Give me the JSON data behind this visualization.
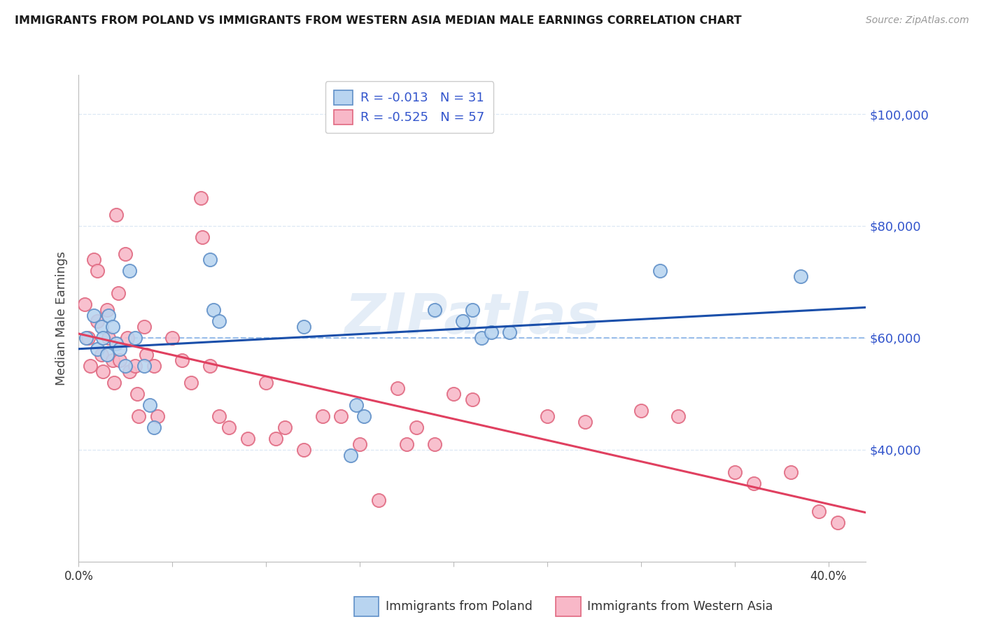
{
  "title": "IMMIGRANTS FROM POLAND VS IMMIGRANTS FROM WESTERN ASIA MEDIAN MALE EARNINGS CORRELATION CHART",
  "source": "Source: ZipAtlas.com",
  "ylabel": "Median Male Earnings",
  "legend_poland_R": "-0.013",
  "legend_poland_N": "31",
  "legend_western_R": "-0.525",
  "legend_western_N": "57",
  "ytick_values": [
    40000,
    60000,
    80000,
    100000
  ],
  "ytick_labels": [
    "$40,000",
    "$60,000",
    "$80,000",
    "$100,000"
  ],
  "ylim": [
    20000,
    107000
  ],
  "xlim": [
    0.0,
    0.42
  ],
  "xtick_positions": [
    0.0,
    0.05,
    0.1,
    0.15,
    0.2,
    0.25,
    0.3,
    0.35,
    0.4
  ],
  "xtick_labels": [
    "0.0%",
    "",
    "",
    "",
    "",
    "",
    "",
    "",
    "40.0%"
  ],
  "watermark": "ZIPatlas",
  "poland_face_color": "#b8d4f0",
  "poland_edge_color": "#6090c8",
  "western_face_color": "#f8b8c8",
  "western_edge_color": "#e06880",
  "trend_poland_color": "#1a4faa",
  "trend_western_color": "#e04060",
  "dashed_ref_color": "#90b8e8",
  "grid_color": "#dce8f4",
  "legend_text_color": "#3355cc",
  "ytick_color": "#3355cc",
  "poland_scatter_x": [
    0.004,
    0.008,
    0.01,
    0.012,
    0.013,
    0.015,
    0.016,
    0.018,
    0.02,
    0.022,
    0.025,
    0.027,
    0.03,
    0.035,
    0.038,
    0.04,
    0.07,
    0.072,
    0.075,
    0.12,
    0.145,
    0.148,
    0.152,
    0.19,
    0.205,
    0.21,
    0.215,
    0.22,
    0.23,
    0.31,
    0.385
  ],
  "poland_scatter_y": [
    60000,
    64000,
    58000,
    62000,
    60000,
    57000,
    64000,
    62000,
    59000,
    58000,
    55000,
    72000,
    60000,
    55000,
    48000,
    44000,
    74000,
    65000,
    63000,
    62000,
    39000,
    48000,
    46000,
    65000,
    63000,
    65000,
    60000,
    61000,
    61000,
    72000,
    71000
  ],
  "western_scatter_x": [
    0.003,
    0.005,
    0.006,
    0.008,
    0.01,
    0.01,
    0.012,
    0.013,
    0.015,
    0.016,
    0.018,
    0.019,
    0.02,
    0.021,
    0.022,
    0.025,
    0.026,
    0.027,
    0.03,
    0.031,
    0.032,
    0.035,
    0.036,
    0.04,
    0.042,
    0.05,
    0.055,
    0.06,
    0.065,
    0.066,
    0.07,
    0.075,
    0.08,
    0.09,
    0.1,
    0.105,
    0.11,
    0.12,
    0.13,
    0.14,
    0.15,
    0.16,
    0.17,
    0.175,
    0.18,
    0.19,
    0.2,
    0.21,
    0.25,
    0.27,
    0.3,
    0.32,
    0.35,
    0.36,
    0.38,
    0.395,
    0.405
  ],
  "western_scatter_y": [
    66000,
    60000,
    55000,
    74000,
    72000,
    63000,
    57000,
    54000,
    65000,
    60000,
    56000,
    52000,
    82000,
    68000,
    56000,
    75000,
    60000,
    54000,
    55000,
    50000,
    46000,
    62000,
    57000,
    55000,
    46000,
    60000,
    56000,
    52000,
    85000,
    78000,
    55000,
    46000,
    44000,
    42000,
    52000,
    42000,
    44000,
    40000,
    46000,
    46000,
    41000,
    31000,
    51000,
    41000,
    44000,
    41000,
    50000,
    49000,
    46000,
    45000,
    47000,
    46000,
    36000,
    34000,
    36000,
    29000,
    27000
  ]
}
